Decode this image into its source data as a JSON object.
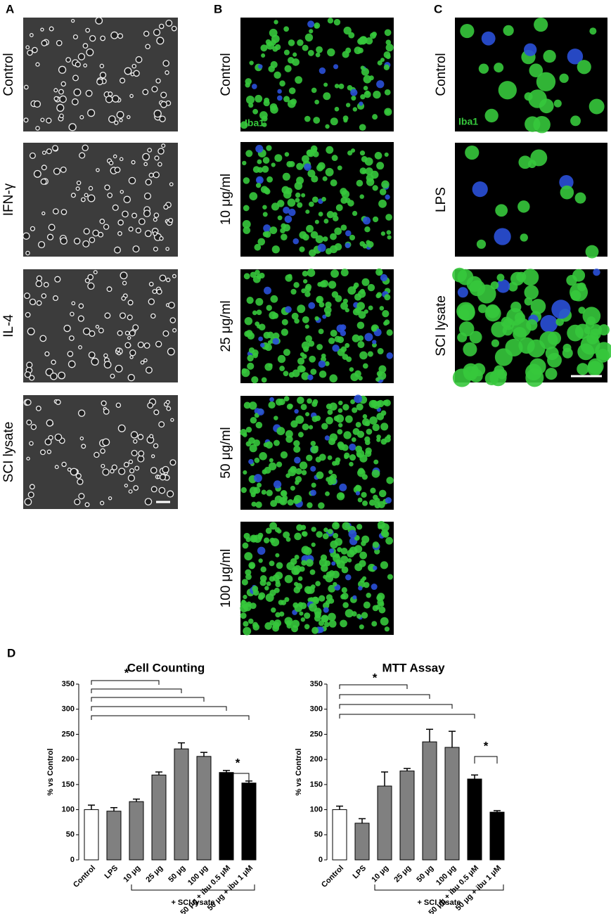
{
  "figure": {
    "panel_labels": [
      "A",
      "B",
      "C",
      "D"
    ],
    "panel_a": {
      "rows": [
        "Control",
        "IFN-γ",
        "IL-4",
        "SCI lysate"
      ]
    },
    "panel_b": {
      "rows": [
        "Control",
        "10 μg/ml",
        "25 μg/ml",
        "50 μg/ml",
        "100 μg/ml"
      ],
      "stain": "Iba1"
    },
    "panel_c": {
      "rows": [
        "Control",
        "LPS",
        "SCI lysate"
      ],
      "stain": "Iba1"
    }
  },
  "chart_data": [
    {
      "type": "bar",
      "title": "Cell Counting",
      "ylabel": "% vs Control",
      "categories": [
        "Control",
        "LPS",
        "10 μg",
        "25 μg",
        "50 μg",
        "100 μg",
        "50 μg + ibu 0.5 μM",
        "50 μg + ibu 1 μM"
      ],
      "values": [
        100,
        97,
        116,
        169,
        221,
        206,
        174,
        153
      ],
      "errors": [
        9,
        7,
        5,
        6,
        12,
        8,
        4,
        4
      ],
      "colors": [
        "#ffffff",
        "#808080",
        "#808080",
        "#808080",
        "#808080",
        "#808080",
        "#000000",
        "#000000"
      ],
      "ylim": [
        0,
        350
      ],
      "yticks": [
        0,
        50,
        100,
        150,
        200,
        250,
        300,
        350
      ],
      "annotations": [
        "*",
        "*"
      ],
      "group_label": "+ SCI lysate"
    },
    {
      "type": "bar",
      "title": "MTT Assay",
      "ylabel": "% vs Control",
      "categories": [
        "Control",
        "LPS",
        "10 μg",
        "25 μg",
        "50 μg",
        "100 μg",
        "50 μg + ibu 0.5 μM",
        "50 μg + ibu 1 μM"
      ],
      "values": [
        100,
        73,
        147,
        177,
        235,
        224,
        161,
        95
      ],
      "errors": [
        7,
        9,
        28,
        5,
        25,
        32,
        8,
        3
      ],
      "colors": [
        "#ffffff",
        "#808080",
        "#808080",
        "#808080",
        "#808080",
        "#808080",
        "#000000",
        "#000000"
      ],
      "ylim": [
        0,
        350
      ],
      "yticks": [
        0,
        50,
        100,
        150,
        200,
        250,
        300,
        350
      ],
      "annotations": [
        "*",
        "*"
      ],
      "group_label": "+ SCI lysate"
    }
  ]
}
